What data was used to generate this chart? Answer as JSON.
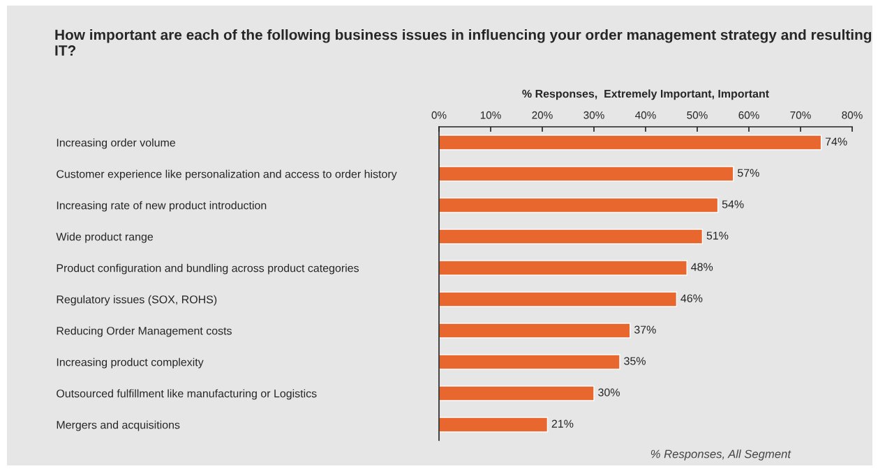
{
  "chart_data": {
    "type": "bar",
    "orientation": "horizontal",
    "title": "How important are each of the following business issues in influencing your order management strategy and resulting IT?",
    "xlabel": "% Responses,  Extremely Important, Important",
    "categories": [
      "Increasing order volume",
      "Customer experience like personalization and access to order history",
      "Increasing rate of new product introduction",
      "Wide product range",
      "Product configuration and bundling across product categories",
      "Regulatory issues (SOX, ROHS)",
      "Reducing Order Management costs",
      "Increasing product complexity",
      "Outsourced fulfillment like manufacturing or Logistics",
      "Mergers and acquisitions"
    ],
    "values": [
      74,
      57,
      54,
      51,
      48,
      46,
      37,
      35,
      30,
      21
    ],
    "value_labels": [
      "74%",
      "57%",
      "54%",
      "51%",
      "48%",
      "46%",
      "37%",
      "35%",
      "30%",
      "21%"
    ],
    "color": "#e8672f",
    "xlim": [
      0,
      80
    ],
    "xticks": [
      {
        "value": 0,
        "label": "0%"
      },
      {
        "value": 10,
        "label": "10%"
      },
      {
        "value": 20,
        "label": "20%"
      },
      {
        "value": 30,
        "label": "30%"
      },
      {
        "value": 40,
        "label": "40%"
      },
      {
        "value": 50,
        "label": "50%"
      },
      {
        "value": 60,
        "label": "60%"
      },
      {
        "value": 70,
        "label": "70%"
      },
      {
        "value": 80,
        "label": "80%"
      }
    ],
    "grid": false,
    "legend": false,
    "annotations": [
      "% Responses, All Segment"
    ]
  }
}
